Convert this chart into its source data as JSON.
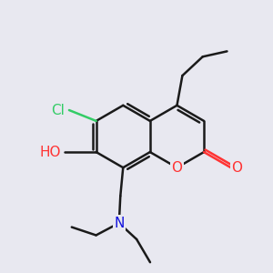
{
  "bg_color": "#e8e8f0",
  "bond_color": "#1a1a1a",
  "bond_width": 1.8,
  "atom_colors": {
    "O": "#ff3333",
    "Cl": "#33cc66",
    "N": "#1111dd"
  },
  "font_size": 11,
  "fig_size": [
    3.0,
    3.0
  ],
  "dpi": 100
}
